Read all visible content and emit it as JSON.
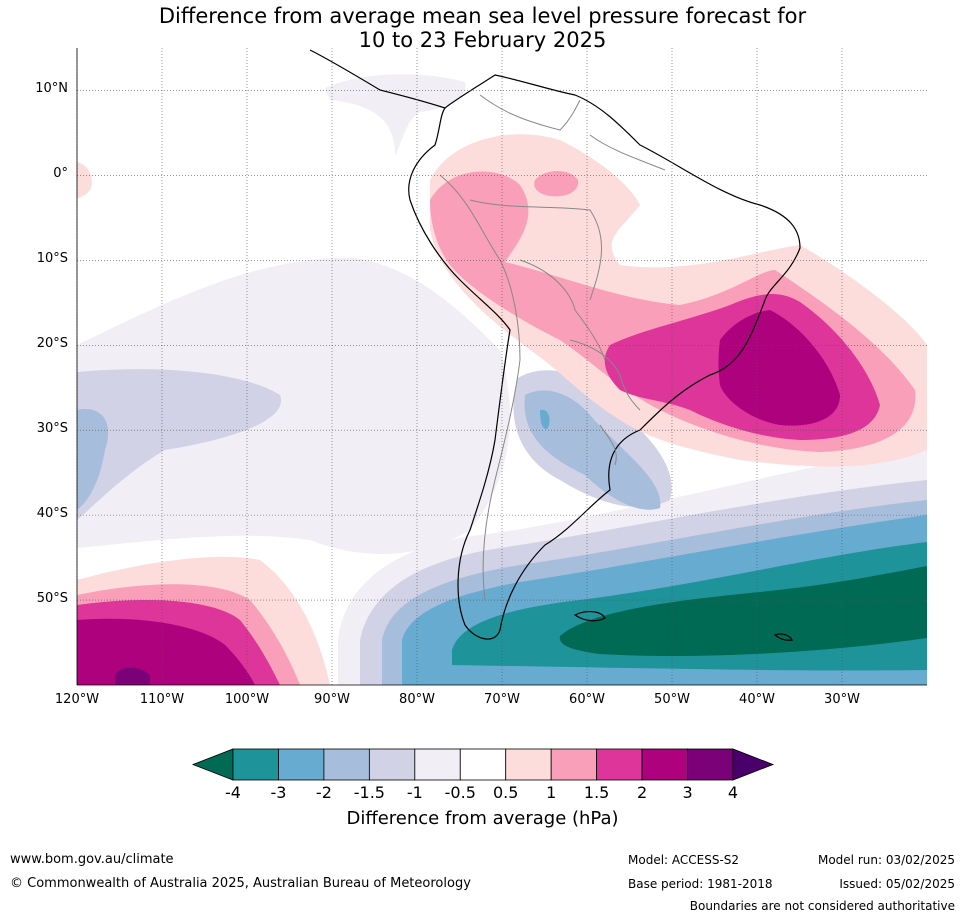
{
  "title_line1": "Difference from average mean sea level pressure forecast for",
  "title_line2": "10 to 23 February 2025",
  "map": {
    "lat_ticks": [
      "10°N",
      "0°",
      "10°S",
      "20°S",
      "30°S",
      "40°S",
      "50°S"
    ],
    "lat_values": [
      10,
      0,
      -10,
      -20,
      -30,
      -40,
      -50
    ],
    "lon_ticks": [
      "120°W",
      "110°W",
      "100°W",
      "90°W",
      "80°W",
      "70°W",
      "60°W",
      "50°W",
      "40°W",
      "30°W"
    ],
    "lon_values": [
      -120,
      -110,
      -100,
      -90,
      -80,
      -70,
      -60,
      -50,
      -40,
      -30
    ],
    "extent": {
      "lon_min": -120,
      "lon_max": -20,
      "lat_min": -60,
      "lat_max": 15
    }
  },
  "colorbar": {
    "tick_labels": [
      "-4",
      "-3",
      "-2",
      "-1.5",
      "-1",
      "-0.5",
      "0.5",
      "1",
      "1.5",
      "2",
      "3",
      "4"
    ],
    "colors": [
      "#006a55",
      "#1e9399",
      "#67abd0",
      "#a7bddc",
      "#d2d2e6",
      "#f2eef5",
      "#ffffff",
      "#fddcdc",
      "#f99fb9",
      "#dd3599",
      "#ae017e",
      "#7a0177",
      "#49006a"
    ],
    "label": "Difference from average (hPa)"
  },
  "footer": {
    "website": "www.bom.gov.au/climate",
    "copyright": "© Commonwealth of Australia 2025, Australian Bureau of Meteorology",
    "model": "Model: ACCESS-S2",
    "base_period": "Base period: 1981-2018",
    "model_run": "Model run: 03/02/2025",
    "issued": "Issued: 05/02/2025",
    "disclaimer": "Boundaries are not considered authoritative"
  }
}
